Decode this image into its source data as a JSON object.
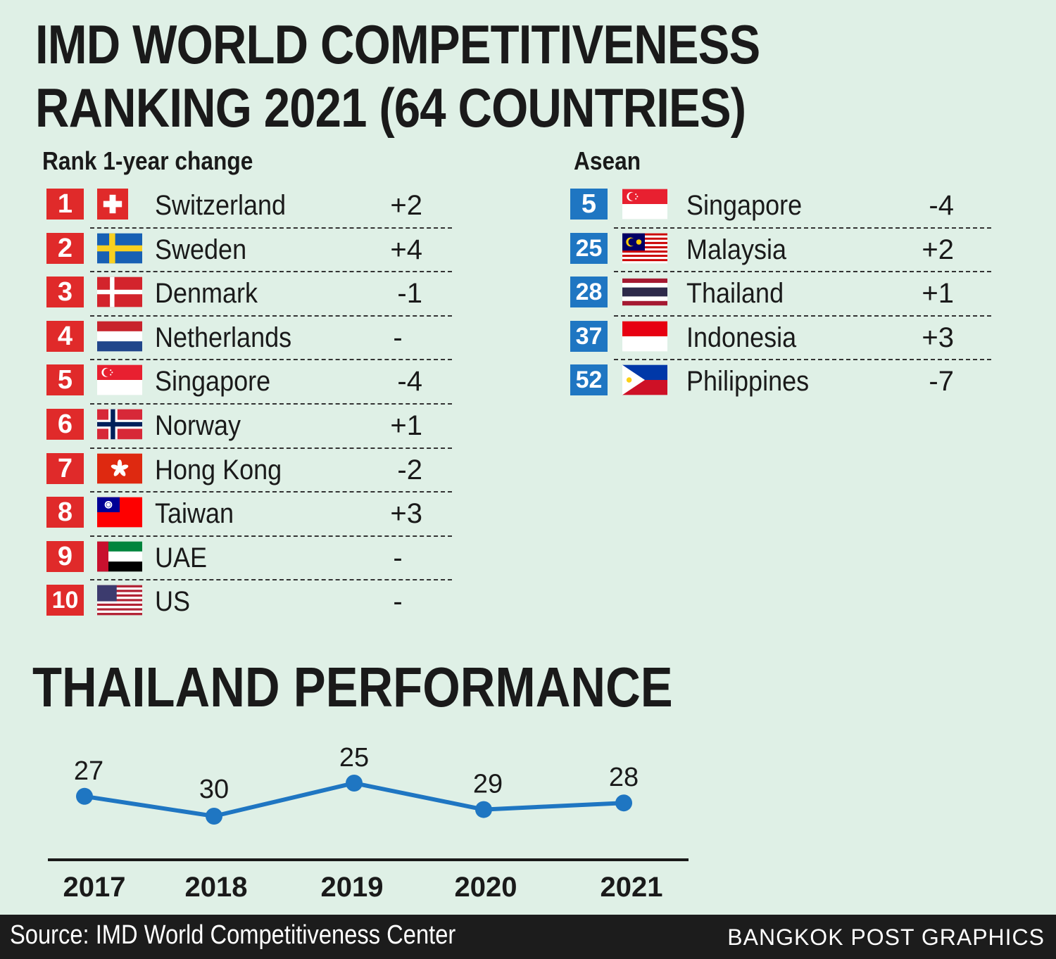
{
  "title_line1": "IMD WORLD COMPETITIVENESS",
  "title_line2": "RANKING 2021 (64 COUNTRIES)",
  "global": {
    "heading": "Rank 1-year change",
    "rows": [
      {
        "rank": "1",
        "country": "Switzerland",
        "change": "+2",
        "flag": "switzerland-flag-icon"
      },
      {
        "rank": "2",
        "country": "Sweden",
        "change": "+4",
        "flag": "sweden-flag-icon"
      },
      {
        "rank": "3",
        "country": "Denmark",
        "change": "-1",
        "flag": "denmark-flag-icon"
      },
      {
        "rank": "4",
        "country": "Netherlands",
        "change": "-",
        "flag": "netherlands-flag-icon"
      },
      {
        "rank": "5",
        "country": "Singapore",
        "change": "-4",
        "flag": "singapore-flag-icon"
      },
      {
        "rank": "6",
        "country": "Norway",
        "change": "+1",
        "flag": "norway-flag-icon"
      },
      {
        "rank": "7",
        "country": "Hong Kong",
        "change": "-2",
        "flag": "hong-kong-flag-icon"
      },
      {
        "rank": "8",
        "country": "Taiwan",
        "change": "+3",
        "flag": "taiwan-flag-icon"
      },
      {
        "rank": "9",
        "country": "UAE",
        "change": "-",
        "flag": "uae-flag-icon"
      },
      {
        "rank": "10",
        "country": "US",
        "change": "-",
        "flag": "us-flag-icon"
      }
    ]
  },
  "asean": {
    "heading": "Asean",
    "rows": [
      {
        "rank": "5",
        "country": "Singapore",
        "change": "-4",
        "flag": "singapore-flag-icon"
      },
      {
        "rank": "25",
        "country": "Malaysia",
        "change": "+2",
        "flag": "malaysia-flag-icon"
      },
      {
        "rank": "28",
        "country": "Thailand",
        "change": "+1",
        "flag": "thailand-flag-icon"
      },
      {
        "rank": "37",
        "country": "Indonesia",
        "change": "+3",
        "flag": "indonesia-flag-icon"
      },
      {
        "rank": "52",
        "country": "Philippines",
        "change": "-7",
        "flag": "philippines-flag-icon"
      }
    ]
  },
  "performance_title": "THAILAND PERFORMANCE",
  "colors": {
    "rank_global": "#e02a2a",
    "rank_asean": "#1f76c2",
    "line": "#1f76c2"
  },
  "chart_data": {
    "type": "line",
    "x": [
      "2017",
      "2018",
      "2019",
      "2020",
      "2021"
    ],
    "values": [
      27,
      30,
      25,
      29,
      28
    ],
    "title": "THAILAND PERFORMANCE",
    "inverted_y": true,
    "ylim": [
      31,
      24
    ],
    "grid": false
  },
  "footer": {
    "source": "Source: IMD World Competitiveness Center",
    "credit": "BANGKOK POST GRAPHICS"
  }
}
